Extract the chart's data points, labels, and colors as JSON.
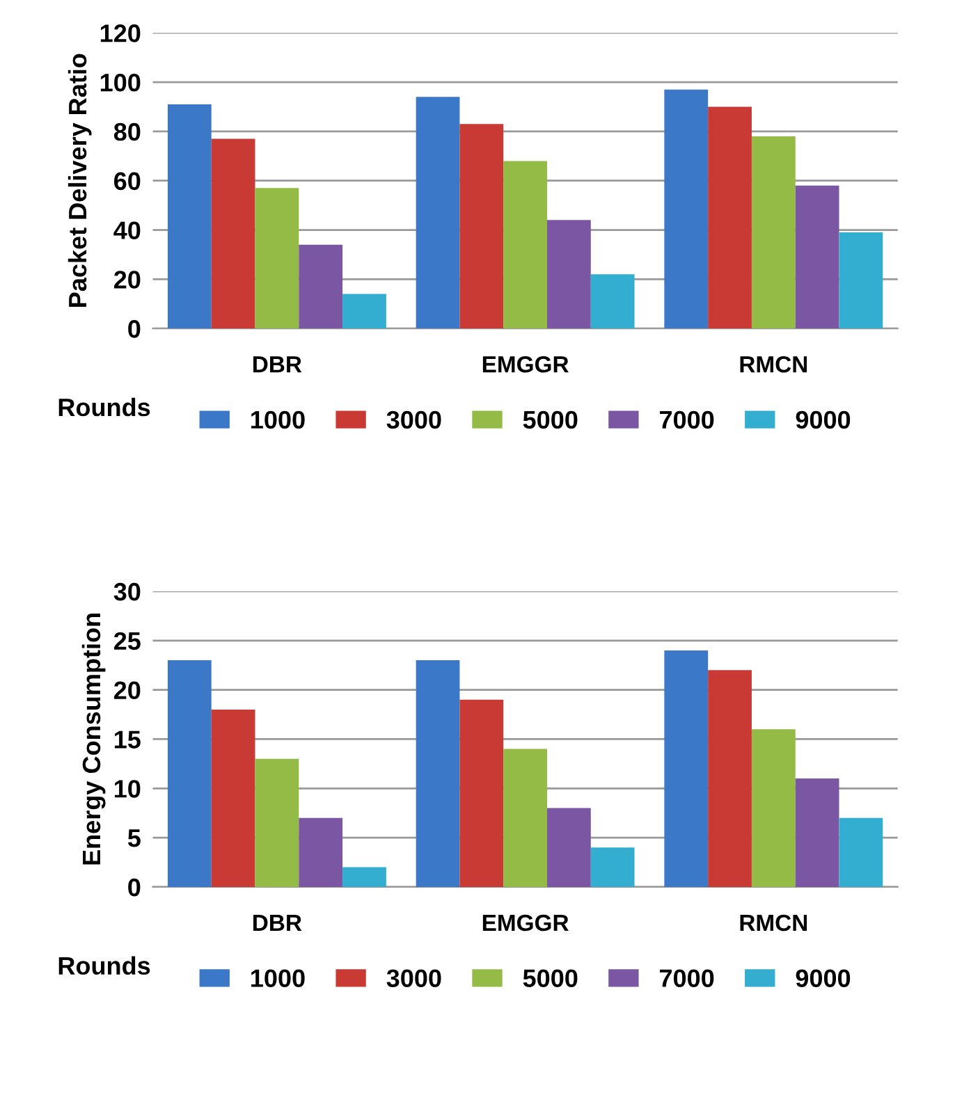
{
  "chart_data": [
    {
      "type": "bar",
      "ylabel": "Packet Delivery Ratio",
      "categories": [
        "DBR",
        "EMGGR",
        "RMCN"
      ],
      "ylim": [
        0,
        120
      ],
      "yticks": [
        0,
        20,
        40,
        60,
        80,
        100,
        120
      ],
      "grid": "y",
      "legend": "bottom",
      "legend_title": "Rounds",
      "series": [
        {
          "name": "1000",
          "color": "#3b78c8",
          "values": [
            91,
            94,
            97
          ]
        },
        {
          "name": "3000",
          "color": "#c93a35",
          "values": [
            77,
            83,
            90
          ]
        },
        {
          "name": "5000",
          "color": "#93bb45",
          "values": [
            57,
            68,
            78
          ]
        },
        {
          "name": "7000",
          "color": "#7a56a3",
          "values": [
            34,
            44,
            58
          ]
        },
        {
          "name": "9000",
          "color": "#33aed0",
          "values": [
            14,
            22,
            39
          ]
        }
      ]
    },
    {
      "type": "bar",
      "ylabel": "Energy Consumption",
      "categories": [
        "DBR",
        "EMGGR",
        "RMCN"
      ],
      "ylim": [
        0,
        30
      ],
      "yticks": [
        0,
        5,
        10,
        15,
        20,
        25,
        30
      ],
      "grid": "y",
      "legend": "bottom",
      "legend_title": "Rounds",
      "series": [
        {
          "name": "1000",
          "color": "#3b78c8",
          "values": [
            23,
            23,
            24
          ]
        },
        {
          "name": "3000",
          "color": "#c93a35",
          "values": [
            18,
            19,
            22
          ]
        },
        {
          "name": "5000",
          "color": "#93bb45",
          "values": [
            13,
            14,
            16
          ]
        },
        {
          "name": "7000",
          "color": "#7a56a3",
          "values": [
            7,
            8,
            11
          ]
        },
        {
          "name": "9000",
          "color": "#33aed0",
          "values": [
            2,
            4,
            7
          ]
        }
      ]
    }
  ]
}
